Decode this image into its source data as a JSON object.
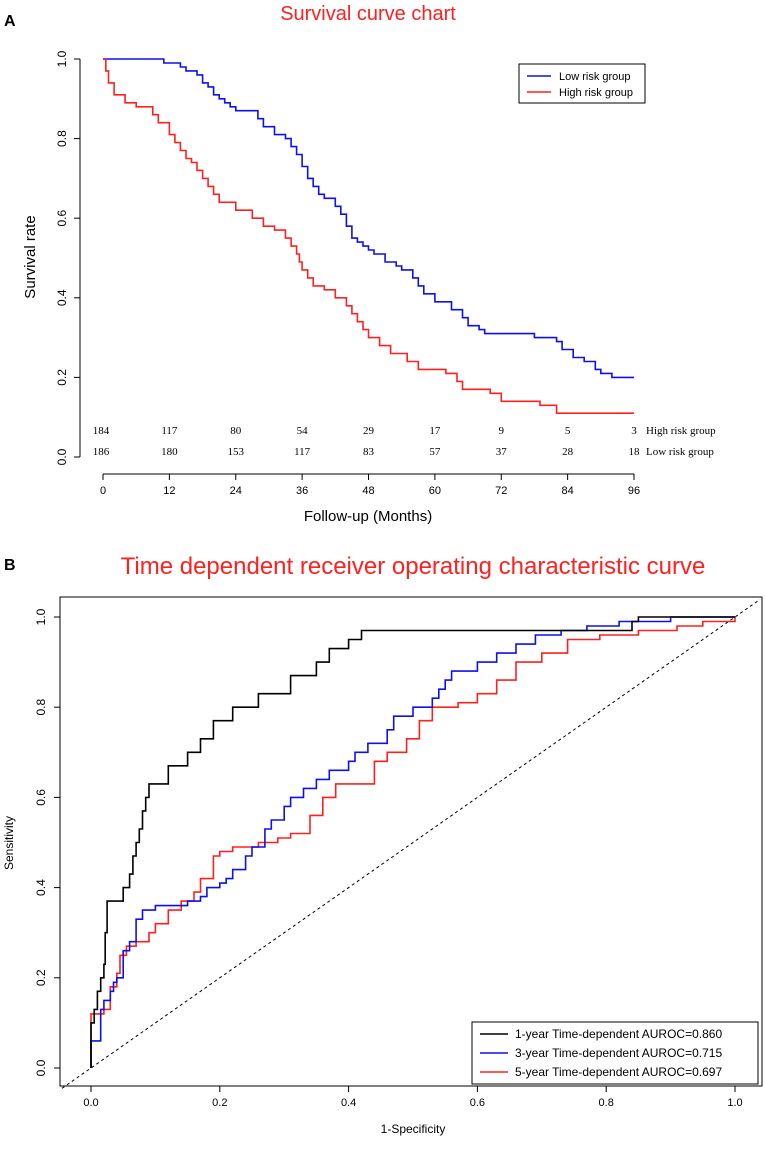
{
  "colors": {
    "red": "#ff2020",
    "blue": "#1010e8",
    "black": "#000000"
  },
  "panel_labels": [
    "A",
    "B"
  ],
  "chart_data": [
    {
      "type": "line",
      "subtype": "kaplan-meier",
      "title": "Survival curve chart",
      "xlabel": "Follow-up (Months)",
      "ylabel": "Survival rate",
      "xlim": [
        0,
        96
      ],
      "ylim": [
        0,
        1
      ],
      "xticks": [
        "0",
        "12",
        "24",
        "36",
        "48",
        "60",
        "72",
        "84",
        "96"
      ],
      "yticks": [
        "0.0",
        "0.2",
        "0.4",
        "0.6",
        "0.8",
        "1.0"
      ],
      "legend_position": "top-right",
      "series": [
        {
          "name": "Low risk group",
          "color": "#1010e8",
          "points": [
            [
              0,
              1.0
            ],
            [
              10,
              1.0
            ],
            [
              11,
              0.99
            ],
            [
              14,
              0.98
            ],
            [
              15,
              0.97
            ],
            [
              17,
              0.96
            ],
            [
              18,
              0.94
            ],
            [
              19,
              0.93
            ],
            [
              20,
              0.91
            ],
            [
              21,
              0.9
            ],
            [
              22,
              0.89
            ],
            [
              23,
              0.88
            ],
            [
              24,
              0.87
            ],
            [
              28,
              0.85
            ],
            [
              29,
              0.83
            ],
            [
              31,
              0.81
            ],
            [
              33,
              0.8
            ],
            [
              34,
              0.78
            ],
            [
              35,
              0.76
            ],
            [
              36,
              0.73
            ],
            [
              37,
              0.7
            ],
            [
              38,
              0.68
            ],
            [
              39,
              0.66
            ],
            [
              40,
              0.65
            ],
            [
              42,
              0.63
            ],
            [
              43,
              0.61
            ],
            [
              44,
              0.58
            ],
            [
              45,
              0.55
            ],
            [
              46,
              0.54
            ],
            [
              47,
              0.53
            ],
            [
              48,
              0.52
            ],
            [
              49,
              0.51
            ],
            [
              51,
              0.49
            ],
            [
              53,
              0.48
            ],
            [
              54,
              0.47
            ],
            [
              56,
              0.45
            ],
            [
              57,
              0.43
            ],
            [
              58,
              0.41
            ],
            [
              60,
              0.39
            ],
            [
              63,
              0.37
            ],
            [
              65,
              0.35
            ],
            [
              66,
              0.33
            ],
            [
              68,
              0.32
            ],
            [
              69,
              0.31
            ],
            [
              78,
              0.3
            ],
            [
              82,
              0.29
            ],
            [
              83,
              0.27
            ],
            [
              85,
              0.25
            ],
            [
              87,
              0.24
            ],
            [
              89,
              0.22
            ],
            [
              90,
              0.21
            ],
            [
              92,
              0.2
            ],
            [
              96,
              0.2
            ]
          ]
        },
        {
          "name": "High risk group",
          "color": "#ff2020",
          "points": [
            [
              0,
              1.0
            ],
            [
              0.5,
              0.97
            ],
            [
              1,
              0.94
            ],
            [
              2,
              0.91
            ],
            [
              4,
              0.89
            ],
            [
              6,
              0.88
            ],
            [
              9,
              0.86
            ],
            [
              10,
              0.84
            ],
            [
              12,
              0.81
            ],
            [
              13,
              0.79
            ],
            [
              14,
              0.77
            ],
            [
              15,
              0.75
            ],
            [
              16,
              0.74
            ],
            [
              17,
              0.72
            ],
            [
              18,
              0.7
            ],
            [
              19,
              0.68
            ],
            [
              20,
              0.66
            ],
            [
              21,
              0.64
            ],
            [
              24,
              0.62
            ],
            [
              27,
              0.6
            ],
            [
              29,
              0.58
            ],
            [
              31,
              0.57
            ],
            [
              33,
              0.55
            ],
            [
              34,
              0.53
            ],
            [
              35,
              0.51
            ],
            [
              35.5,
              0.49
            ],
            [
              36,
              0.47
            ],
            [
              37,
              0.45
            ],
            [
              38,
              0.43
            ],
            [
              40,
              0.42
            ],
            [
              42,
              0.4
            ],
            [
              44,
              0.38
            ],
            [
              45,
              0.36
            ],
            [
              46,
              0.34
            ],
            [
              47,
              0.32
            ],
            [
              48,
              0.3
            ],
            [
              50,
              0.28
            ],
            [
              52,
              0.26
            ],
            [
              55,
              0.24
            ],
            [
              57,
              0.22
            ],
            [
              62,
              0.21
            ],
            [
              64,
              0.19
            ],
            [
              65,
              0.17
            ],
            [
              70,
              0.16
            ],
            [
              72,
              0.14
            ],
            [
              79,
              0.13
            ],
            [
              82,
              0.11
            ],
            [
              96,
              0.11
            ]
          ]
        }
      ],
      "risk_table": {
        "rows": [
          {
            "name": "High risk group",
            "counts": [
              "184",
              "117",
              "80",
              "54",
              "29",
              "17",
              "9",
              "5",
              "3"
            ]
          },
          {
            "name": "Low risk group",
            "counts": [
              "186",
              "180",
              "153",
              "117",
              "83",
              "57",
              "37",
              "28",
              "18"
            ]
          }
        ]
      }
    },
    {
      "type": "line",
      "subtype": "roc",
      "title": "Time dependent receiver operating characteristic curve",
      "xlabel": "1-Specificity",
      "ylabel": "Sensitivity",
      "xlim": [
        0,
        1
      ],
      "ylim": [
        0,
        1
      ],
      "xticks": [
        "0.0",
        "0.2",
        "0.4",
        "0.6",
        "0.8",
        "1.0"
      ],
      "yticks": [
        "0.0",
        "0.2",
        "0.4",
        "0.6",
        "0.8",
        "1.0"
      ],
      "legend_position": "bottom-right",
      "diagonal": true,
      "series": [
        {
          "name": "1-year Time-dependent AUROC=0.860",
          "color": "#000000",
          "points": [
            [
              0,
              0
            ],
            [
              0,
              0.1
            ],
            [
              0.005,
              0.13
            ],
            [
              0.01,
              0.17
            ],
            [
              0.015,
              0.2
            ],
            [
              0.02,
              0.23
            ],
            [
              0.022,
              0.3
            ],
            [
              0.025,
              0.37
            ],
            [
              0.05,
              0.37
            ],
            [
              0.05,
              0.4
            ],
            [
              0.06,
              0.43
            ],
            [
              0.065,
              0.47
            ],
            [
              0.07,
              0.5
            ],
            [
              0.075,
              0.53
            ],
            [
              0.08,
              0.57
            ],
            [
              0.085,
              0.6
            ],
            [
              0.09,
              0.63
            ],
            [
              0.11,
              0.63
            ],
            [
              0.12,
              0.67
            ],
            [
              0.15,
              0.67
            ],
            [
              0.15,
              0.7
            ],
            [
              0.17,
              0.7
            ],
            [
              0.17,
              0.73
            ],
            [
              0.19,
              0.73
            ],
            [
              0.19,
              0.77
            ],
            [
              0.22,
              0.77
            ],
            [
              0.22,
              0.8
            ],
            [
              0.26,
              0.8
            ],
            [
              0.26,
              0.83
            ],
            [
              0.3,
              0.83
            ],
            [
              0.31,
              0.87
            ],
            [
              0.35,
              0.87
            ],
            [
              0.35,
              0.9
            ],
            [
              0.37,
              0.9
            ],
            [
              0.37,
              0.93
            ],
            [
              0.4,
              0.93
            ],
            [
              0.4,
              0.95
            ],
            [
              0.42,
              0.95
            ],
            [
              0.42,
              0.97
            ],
            [
              0.84,
              0.97
            ],
            [
              0.84,
              0.99
            ],
            [
              0.85,
              1.0
            ],
            [
              1.0,
              1.0
            ]
          ]
        },
        {
          "name": "3-year Time-dependent AUROC=0.715",
          "color": "#1010e8",
          "points": [
            [
              0,
              0
            ],
            [
              0,
              0.06
            ],
            [
              0.01,
              0.06
            ],
            [
              0.015,
              0.13
            ],
            [
              0.02,
              0.15
            ],
            [
              0.03,
              0.17
            ],
            [
              0.035,
              0.19
            ],
            [
              0.04,
              0.2
            ],
            [
              0.05,
              0.26
            ],
            [
              0.06,
              0.28
            ],
            [
              0.07,
              0.33
            ],
            [
              0.08,
              0.35
            ],
            [
              0.1,
              0.36
            ],
            [
              0.13,
              0.36
            ],
            [
              0.15,
              0.37
            ],
            [
              0.17,
              0.38
            ],
            [
              0.18,
              0.4
            ],
            [
              0.2,
              0.41
            ],
            [
              0.21,
              0.42
            ],
            [
              0.22,
              0.44
            ],
            [
              0.24,
              0.47
            ],
            [
              0.25,
              0.49
            ],
            [
              0.27,
              0.53
            ],
            [
              0.28,
              0.55
            ],
            [
              0.3,
              0.58
            ],
            [
              0.31,
              0.6
            ],
            [
              0.33,
              0.62
            ],
            [
              0.35,
              0.64
            ],
            [
              0.37,
              0.66
            ],
            [
              0.39,
              0.66
            ],
            [
              0.4,
              0.68
            ],
            [
              0.41,
              0.7
            ],
            [
              0.43,
              0.72
            ],
            [
              0.45,
              0.72
            ],
            [
              0.46,
              0.75
            ],
            [
              0.47,
              0.78
            ],
            [
              0.5,
              0.8
            ],
            [
              0.53,
              0.82
            ],
            [
              0.54,
              0.84
            ],
            [
              0.55,
              0.86
            ],
            [
              0.56,
              0.88
            ],
            [
              0.6,
              0.9
            ],
            [
              0.63,
              0.92
            ],
            [
              0.66,
              0.94
            ],
            [
              0.69,
              0.96
            ],
            [
              0.73,
              0.97
            ],
            [
              0.77,
              0.98
            ],
            [
              0.82,
              0.99
            ],
            [
              0.9,
              1.0
            ],
            [
              1.0,
              1.0
            ]
          ]
        },
        {
          "name": "5-year Time-dependent AUROC=0.697",
          "color": "#ff2020",
          "points": [
            [
              0,
              0
            ],
            [
              0,
              0.12
            ],
            [
              0.01,
              0.12
            ],
            [
              0.02,
              0.13
            ],
            [
              0.03,
              0.18
            ],
            [
              0.04,
              0.21
            ],
            [
              0.045,
              0.25
            ],
            [
              0.055,
              0.27
            ],
            [
              0.07,
              0.28
            ],
            [
              0.09,
              0.3
            ],
            [
              0.1,
              0.32
            ],
            [
              0.12,
              0.35
            ],
            [
              0.14,
              0.37
            ],
            [
              0.16,
              0.39
            ],
            [
              0.17,
              0.42
            ],
            [
              0.19,
              0.47
            ],
            [
              0.2,
              0.48
            ],
            [
              0.22,
              0.49
            ],
            [
              0.26,
              0.5
            ],
            [
              0.29,
              0.51
            ],
            [
              0.31,
              0.52
            ],
            [
              0.34,
              0.56
            ],
            [
              0.36,
              0.6
            ],
            [
              0.38,
              0.63
            ],
            [
              0.42,
              0.63
            ],
            [
              0.44,
              0.68
            ],
            [
              0.46,
              0.7
            ],
            [
              0.49,
              0.73
            ],
            [
              0.51,
              0.77
            ],
            [
              0.53,
              0.8
            ],
            [
              0.57,
              0.81
            ],
            [
              0.6,
              0.83
            ],
            [
              0.63,
              0.86
            ],
            [
              0.66,
              0.9
            ],
            [
              0.7,
              0.92
            ],
            [
              0.74,
              0.95
            ],
            [
              0.79,
              0.96
            ],
            [
              0.85,
              0.97
            ],
            [
              0.91,
              0.98
            ],
            [
              0.95,
              0.99
            ],
            [
              1.0,
              1.0
            ]
          ]
        }
      ]
    }
  ]
}
